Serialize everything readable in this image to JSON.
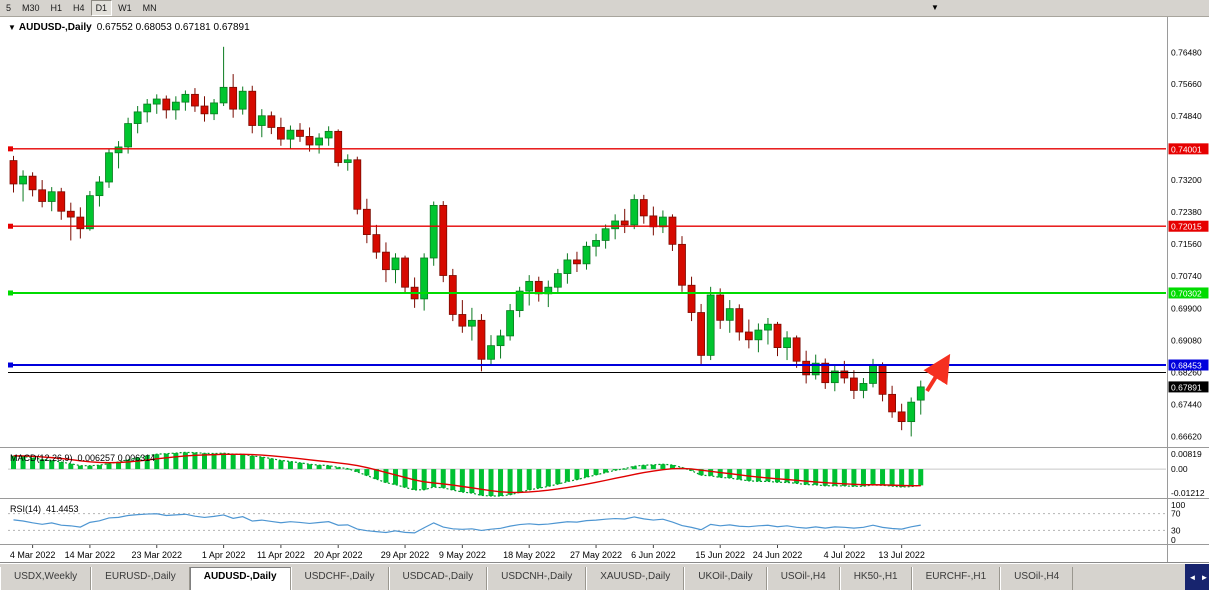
{
  "toolbar": {
    "timeframes": [
      {
        "label": "5",
        "active": false
      },
      {
        "label": "M30",
        "active": false
      },
      {
        "label": "H1",
        "active": false
      },
      {
        "label": "H4",
        "active": false
      },
      {
        "label": "D1",
        "active": true
      },
      {
        "label": "W1",
        "active": false
      },
      {
        "label": "MN",
        "active": false
      }
    ],
    "dropdown_icon": "▼"
  },
  "header": {
    "marker": "▼",
    "symbol": "AUDUSD-,Daily",
    "quote": "0.67552 0.68053 0.67181 0.67891"
  },
  "chart_data": {
    "type": "candlestick",
    "symbol": "AUDUSD-",
    "timeframe": "Daily",
    "price_axis": {
      "min": 0.664,
      "max": 0.77,
      "ticks": [
        {
          "value": 0.7648,
          "label": "0.76480"
        },
        {
          "value": 0.7566,
          "label": "0.75660"
        },
        {
          "value": 0.7484,
          "label": "0.74840"
        },
        {
          "value": 0.732,
          "label": "0.73200"
        },
        {
          "value": 0.7238,
          "label": "0.72380"
        },
        {
          "value": 0.7156,
          "label": "0.71560"
        },
        {
          "value": 0.7074,
          "label": "0.70740"
        },
        {
          "value": 0.699,
          "label": "0.69900"
        },
        {
          "value": 0.6908,
          "label": "0.69080"
        },
        {
          "value": 0.6826,
          "label": "0.68260"
        },
        {
          "value": 0.6744,
          "label": "0.67440"
        },
        {
          "value": 0.6662,
          "label": "0.66620"
        }
      ]
    },
    "levels": [
      {
        "value": 0.74001,
        "label": "0.74001",
        "color": "#E60000",
        "width": 1.4,
        "tag": true
      },
      {
        "value": 0.72015,
        "label": "0.72015",
        "color": "#E60000",
        "width": 1.4,
        "tag": true
      },
      {
        "value": 0.70302,
        "label": "0.70302",
        "color": "#00DB00",
        "width": 2,
        "tag": true
      },
      {
        "value": 0.68453,
        "label": "0.68453",
        "color": "#0000DC",
        "width": 2,
        "tag": true
      },
      {
        "value": 0.6826,
        "label": "",
        "color": "#000000",
        "width": 1,
        "tag": false
      }
    ],
    "current_price": {
      "value": 0.67891,
      "label": "0.67891",
      "bg": "#000000"
    },
    "x_axis": {
      "labels": [
        "4 Mar 2022",
        "14 Mar 2022",
        "23 Mar 2022",
        "1 Apr 2022",
        "11 Apr 2022",
        "20 Apr 2022",
        "29 Apr 2022",
        "9 May 2022",
        "18 May 2022",
        "27 May 2022",
        "6 Jun 2022",
        "15 Jun 2022",
        "24 Jun 2022",
        "4 Jul 2022",
        "13 Jul 2022"
      ],
      "indices": [
        2,
        8,
        15,
        22,
        28,
        34,
        41,
        47,
        54,
        61,
        67,
        74,
        80,
        87,
        93
      ]
    },
    "candles": [
      [
        0.737,
        0.7382,
        0.7288,
        0.731
      ],
      [
        0.731,
        0.7345,
        0.7265,
        0.733
      ],
      [
        0.733,
        0.734,
        0.7278,
        0.7295
      ],
      [
        0.7295,
        0.732,
        0.725,
        0.7265
      ],
      [
        0.7265,
        0.7302,
        0.724,
        0.729
      ],
      [
        0.729,
        0.73,
        0.7218,
        0.724
      ],
      [
        0.724,
        0.7262,
        0.7165,
        0.7225
      ],
      [
        0.7225,
        0.725,
        0.717,
        0.7195
      ],
      [
        0.7195,
        0.7292,
        0.719,
        0.728
      ],
      [
        0.728,
        0.733,
        0.7252,
        0.7315
      ],
      [
        0.7315,
        0.74,
        0.73,
        0.739
      ],
      [
        0.739,
        0.742,
        0.735,
        0.7405
      ],
      [
        0.7405,
        0.748,
        0.7388,
        0.7465
      ],
      [
        0.7465,
        0.751,
        0.744,
        0.7495
      ],
      [
        0.7495,
        0.7528,
        0.7468,
        0.7515
      ],
      [
        0.7515,
        0.754,
        0.749,
        0.7528
      ],
      [
        0.7528,
        0.7537,
        0.7478,
        0.75
      ],
      [
        0.75,
        0.7535,
        0.7475,
        0.752
      ],
      [
        0.752,
        0.755,
        0.7498,
        0.754
      ],
      [
        0.754,
        0.7556,
        0.7495,
        0.751
      ],
      [
        0.751,
        0.7535,
        0.747,
        0.749
      ],
      [
        0.749,
        0.7528,
        0.7474,
        0.7518
      ],
      [
        0.7518,
        0.7662,
        0.751,
        0.7558
      ],
      [
        0.7558,
        0.7592,
        0.748,
        0.7502
      ],
      [
        0.7502,
        0.756,
        0.7488,
        0.7548
      ],
      [
        0.7548,
        0.7562,
        0.744,
        0.746
      ],
      [
        0.746,
        0.7502,
        0.743,
        0.7485
      ],
      [
        0.7485,
        0.7496,
        0.7438,
        0.7455
      ],
      [
        0.7455,
        0.748,
        0.7408,
        0.7425
      ],
      [
        0.7425,
        0.746,
        0.74,
        0.7448
      ],
      [
        0.7448,
        0.7466,
        0.7418,
        0.7432
      ],
      [
        0.7432,
        0.7455,
        0.7393,
        0.741
      ],
      [
        0.741,
        0.744,
        0.7388,
        0.7428
      ],
      [
        0.7428,
        0.7458,
        0.7408,
        0.7445
      ],
      [
        0.7445,
        0.745,
        0.7355,
        0.7365
      ],
      [
        0.7365,
        0.7386,
        0.7344,
        0.7372
      ],
      [
        0.7372,
        0.738,
        0.7232,
        0.7245
      ],
      [
        0.7245,
        0.7272,
        0.7158,
        0.718
      ],
      [
        0.718,
        0.7205,
        0.7118,
        0.7135
      ],
      [
        0.7135,
        0.716,
        0.7058,
        0.709
      ],
      [
        0.709,
        0.7132,
        0.7055,
        0.712
      ],
      [
        0.712,
        0.7126,
        0.7028,
        0.7045
      ],
      [
        0.7045,
        0.707,
        0.6992,
        0.7015
      ],
      [
        0.7015,
        0.7132,
        0.6985,
        0.712
      ],
      [
        0.712,
        0.7265,
        0.71,
        0.7255
      ],
      [
        0.7255,
        0.7266,
        0.7058,
        0.7075
      ],
      [
        0.7075,
        0.7092,
        0.6958,
        0.6975
      ],
      [
        0.6975,
        0.7012,
        0.6928,
        0.6945
      ],
      [
        0.6945,
        0.6992,
        0.6908,
        0.696
      ],
      [
        0.696,
        0.6976,
        0.6829,
        0.686
      ],
      [
        0.686,
        0.6922,
        0.6848,
        0.6895
      ],
      [
        0.6895,
        0.6936,
        0.6862,
        0.692
      ],
      [
        0.692,
        0.7002,
        0.6908,
        0.6985
      ],
      [
        0.6985,
        0.7046,
        0.6968,
        0.7035
      ],
      [
        0.7035,
        0.7076,
        0.6998,
        0.706
      ],
      [
        0.706,
        0.7072,
        0.7008,
        0.7028
      ],
      [
        0.7028,
        0.7062,
        0.6994,
        0.7045
      ],
      [
        0.7045,
        0.7092,
        0.7028,
        0.708
      ],
      [
        0.708,
        0.7132,
        0.7054,
        0.7115
      ],
      [
        0.7115,
        0.7136,
        0.7084,
        0.7105
      ],
      [
        0.7105,
        0.7162,
        0.709,
        0.715
      ],
      [
        0.715,
        0.7182,
        0.7124,
        0.7165
      ],
      [
        0.7165,
        0.7206,
        0.7144,
        0.7195
      ],
      [
        0.7195,
        0.7232,
        0.7168,
        0.7215
      ],
      [
        0.7215,
        0.7246,
        0.7184,
        0.7205
      ],
      [
        0.7205,
        0.7283,
        0.7194,
        0.727
      ],
      [
        0.727,
        0.7282,
        0.7208,
        0.7228
      ],
      [
        0.7228,
        0.7252,
        0.7178,
        0.72
      ],
      [
        0.72,
        0.7242,
        0.7184,
        0.7225
      ],
      [
        0.7225,
        0.7232,
        0.7138,
        0.7155
      ],
      [
        0.7155,
        0.7176,
        0.7033,
        0.705
      ],
      [
        0.705,
        0.7072,
        0.6958,
        0.698
      ],
      [
        0.698,
        0.7002,
        0.6848,
        0.687
      ],
      [
        0.687,
        0.7046,
        0.6858,
        0.7025
      ],
      [
        0.7025,
        0.7042,
        0.6938,
        0.696
      ],
      [
        0.696,
        0.7012,
        0.6928,
        0.699
      ],
      [
        0.699,
        0.7001,
        0.6908,
        0.693
      ],
      [
        0.693,
        0.6962,
        0.6888,
        0.691
      ],
      [
        0.691,
        0.6952,
        0.6878,
        0.6935
      ],
      [
        0.6935,
        0.6966,
        0.6898,
        0.695
      ],
      [
        0.695,
        0.6956,
        0.6868,
        0.689
      ],
      [
        0.689,
        0.6932,
        0.6858,
        0.6915
      ],
      [
        0.6915,
        0.6921,
        0.6838,
        0.6855
      ],
      [
        0.6855,
        0.6882,
        0.6798,
        0.682
      ],
      [
        0.682,
        0.6872,
        0.6808,
        0.685
      ],
      [
        0.685,
        0.6862,
        0.6784,
        0.68
      ],
      [
        0.68,
        0.6846,
        0.6778,
        0.683
      ],
      [
        0.683,
        0.6856,
        0.6798,
        0.6812
      ],
      [
        0.6812,
        0.6832,
        0.6758,
        0.678
      ],
      [
        0.678,
        0.6812,
        0.676,
        0.6798
      ],
      [
        0.6798,
        0.6861,
        0.6788,
        0.6845
      ],
      [
        0.6845,
        0.6852,
        0.6752,
        0.677
      ],
      [
        0.677,
        0.6792,
        0.671,
        0.6725
      ],
      [
        0.6725,
        0.6746,
        0.6678,
        0.67
      ],
      [
        0.67,
        0.6762,
        0.6662,
        0.675
      ],
      [
        0.67552,
        0.68053,
        0.67181,
        0.67891
      ]
    ],
    "annotation": {
      "type": "arrow-up",
      "color": "#F53020",
      "from": [
        927,
        374
      ],
      "to": [
        947,
        342
      ]
    },
    "indicators": {
      "macd": {
        "label": "MACD(12,26,9)",
        "values": "0.006257 0.006314",
        "seed_offset": 0.006,
        "range": [
          -0.0122,
          0.0082
        ],
        "axis": [
          {
            "label": "0.00819",
            "value": 0.0082
          },
          {
            "label": "0.00",
            "value": 0
          },
          {
            "label": "-0.01212",
            "value": -0.01212
          }
        ]
      },
      "rsi": {
        "label": "RSI(14)",
        "value": "41.4453",
        "levels": [
          70,
          30
        ],
        "range": [
          0,
          100
        ],
        "axis": [
          {
            "label": "100",
            "value": 100
          },
          {
            "label": "70",
            "value": 70
          },
          {
            "label": "30",
            "value": 30
          },
          {
            "label": "0",
            "value": 0
          }
        ]
      }
    }
  },
  "tabs": {
    "items": [
      {
        "label": "USDX,Weekly",
        "active": false
      },
      {
        "label": "EURUSD-,Daily",
        "active": false
      },
      {
        "label": "AUDUSD-,Daily",
        "active": true
      },
      {
        "label": "USDCHF-,Daily",
        "active": false
      },
      {
        "label": "USDCAD-,Daily",
        "active": false
      },
      {
        "label": "USDCNH-,Daily",
        "active": false
      },
      {
        "label": "XAUUSD-,Daily",
        "active": false
      },
      {
        "label": "UKOil-,Daily",
        "active": false
      },
      {
        "label": "USOil-,H4",
        "active": false
      },
      {
        "label": "HK50-,H1",
        "active": false
      },
      {
        "label": "EURCHF-,H1",
        "active": false
      },
      {
        "label": "USOil-,H4",
        "active": false
      }
    ],
    "nav_left": "◄",
    "nav_right": "►"
  },
  "colors": {
    "up_fill": "#00C52F",
    "up_stroke": "#0A7A20",
    "down_fill": "#D60A00",
    "down_stroke": "#7A0A00",
    "macd_hist": "#00C132",
    "macd_line": "#009C28",
    "macd_signal": "#E00000",
    "rsi_line": "#4E96D2",
    "rsi_level": "#B4B4B4",
    "toolbar_bg": "#D6D3CE",
    "tab_nav_bg": "#17246E"
  }
}
